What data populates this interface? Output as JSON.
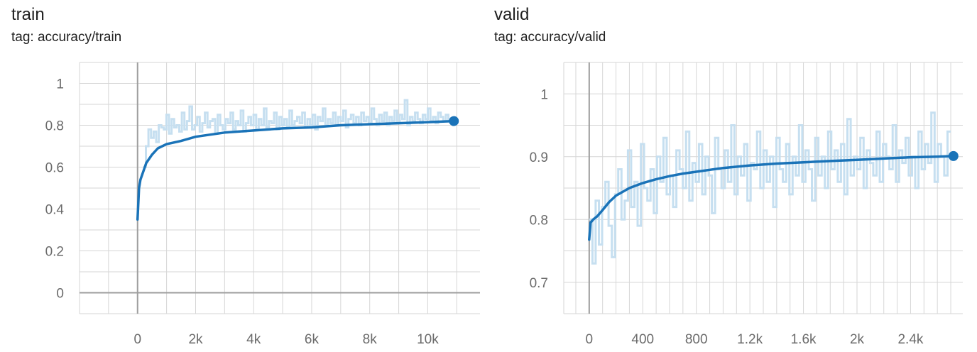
{
  "colors": {
    "raw_line": "#c6dff0",
    "smoothed_line": "#1a73b8",
    "grid": "#d6d6d6",
    "axis": "#9e9e9e",
    "tick_text": "#6b6b6b"
  },
  "charts": [
    {
      "title": "train",
      "tag": "tag: accuracy/train",
      "dot_icon": "end-point-dot"
    },
    {
      "title": "valid",
      "tag": "tag: accuracy/valid",
      "dot_icon": "end-point-dot"
    }
  ],
  "chart_data": [
    {
      "type": "line",
      "title": "train",
      "subtitle": "tag: accuracy/train",
      "xlim": [
        -2000,
        11800
      ],
      "ylim": [
        -0.1,
        1.1
      ],
      "grid": true,
      "x_ticks": [
        0,
        2000,
        4000,
        6000,
        8000,
        10000
      ],
      "x_tick_labels": [
        "0",
        "2k",
        "4k",
        "6k",
        "8k",
        "10k"
      ],
      "y_ticks": [
        0,
        0.2,
        0.4,
        0.6,
        0.8,
        1
      ],
      "y_tick_labels": [
        "0",
        "0.2",
        "0.4",
        "0.6",
        "0.8",
        "1"
      ],
      "series": [
        {
          "role": "smoothed",
          "x": [
            0,
            50,
            100,
            200,
            300,
            500,
            700,
            1000,
            1500,
            2000,
            3000,
            4000,
            5000,
            6000,
            7000,
            8000,
            9000,
            10000,
            10900
          ],
          "y": [
            0.35,
            0.5,
            0.54,
            0.58,
            0.62,
            0.66,
            0.69,
            0.71,
            0.725,
            0.745,
            0.765,
            0.775,
            0.785,
            0.79,
            0.8,
            0.805,
            0.81,
            0.815,
            0.82
          ]
        },
        {
          "role": "raw",
          "x_start": 200,
          "x_end": 10800,
          "y": [
            0.6,
            0.7,
            0.78,
            0.74,
            0.77,
            0.72,
            0.8,
            0.79,
            0.78,
            0.85,
            0.76,
            0.83,
            0.79,
            0.8,
            0.77,
            0.86,
            0.78,
            0.82,
            0.89,
            0.78,
            0.8,
            0.84,
            0.77,
            0.81,
            0.86,
            0.79,
            0.82,
            0.83,
            0.76,
            0.85,
            0.8,
            0.78,
            0.83,
            0.81,
            0.86,
            0.78,
            0.82,
            0.8,
            0.87,
            0.77,
            0.81,
            0.84,
            0.8,
            0.85,
            0.78,
            0.83,
            0.8,
            0.88,
            0.79,
            0.82,
            0.81,
            0.86,
            0.78,
            0.84,
            0.8,
            0.83,
            0.79,
            0.87,
            0.8,
            0.82,
            0.84,
            0.81,
            0.86,
            0.79,
            0.83,
            0.8,
            0.85,
            0.78,
            0.84,
            0.82,
            0.88,
            0.8,
            0.83,
            0.81,
            0.86,
            0.8,
            0.84,
            0.82,
            0.87,
            0.79,
            0.83,
            0.85,
            0.81,
            0.84,
            0.8,
            0.86,
            0.82,
            0.84,
            0.81,
            0.88,
            0.83,
            0.8,
            0.85,
            0.82,
            0.86,
            0.8,
            0.84,
            0.82,
            0.87,
            0.81,
            0.85,
            0.83,
            0.92,
            0.8,
            0.84,
            0.82,
            0.86,
            0.83,
            0.81,
            0.85,
            0.83,
            0.88,
            0.82,
            0.84,
            0.81,
            0.86,
            0.84,
            0.82,
            0.85,
            0.83
          ]
        }
      ],
      "endpoint": {
        "x": 10900,
        "y": 0.82
      }
    },
    {
      "type": "line",
      "title": "valid",
      "subtitle": "tag: accuracy/valid",
      "xlim": [
        -190,
        2790
      ],
      "ylim": [
        0.65,
        1.05
      ],
      "grid": true,
      "x_ticks": [
        0,
        400,
        800,
        1200,
        1600,
        2000,
        2400
      ],
      "x_tick_labels": [
        "0",
        "400",
        "800",
        "1.2k",
        "1.6k",
        "2k",
        "2.4k"
      ],
      "y_ticks": [
        0.7,
        0.8,
        0.9,
        1
      ],
      "y_tick_labels": [
        "0.7",
        "0.8",
        "0.9",
        "1"
      ],
      "series": [
        {
          "role": "smoothed",
          "x": [
            0,
            10,
            30,
            60,
            100,
            150,
            200,
            300,
            400,
            500,
            600,
            700,
            800,
            900,
            1000,
            1200,
            1400,
            1600,
            1800,
            2000,
            2200,
            2400,
            2600,
            2720
          ],
          "y": [
            0.768,
            0.795,
            0.8,
            0.805,
            0.815,
            0.828,
            0.838,
            0.85,
            0.858,
            0.864,
            0.869,
            0.873,
            0.876,
            0.879,
            0.882,
            0.886,
            0.889,
            0.891,
            0.893,
            0.895,
            0.897,
            0.899,
            0.9,
            0.901
          ]
        },
        {
          "role": "raw",
          "x_start": 0,
          "x_end": 2700,
          "y": [
            0.8,
            0.73,
            0.83,
            0.76,
            0.82,
            0.86,
            0.79,
            0.74,
            0.84,
            0.88,
            0.8,
            0.83,
            0.91,
            0.82,
            0.86,
            0.79,
            0.92,
            0.85,
            0.83,
            0.88,
            0.81,
            0.9,
            0.86,
            0.93,
            0.84,
            0.87,
            0.82,
            0.91,
            0.88,
            0.85,
            0.94,
            0.83,
            0.89,
            0.86,
            0.92,
            0.84,
            0.9,
            0.87,
            0.81,
            0.93,
            0.88,
            0.85,
            0.91,
            0.86,
            0.95,
            0.84,
            0.9,
            0.87,
            0.92,
            0.83,
            0.89,
            0.88,
            0.94,
            0.85,
            0.91,
            0.86,
            0.9,
            0.82,
            0.93,
            0.88,
            0.86,
            0.92,
            0.84,
            0.9,
            0.87,
            0.95,
            0.86,
            0.91,
            0.88,
            0.83,
            0.93,
            0.87,
            0.9,
            0.85,
            0.94,
            0.88,
            0.91,
            0.86,
            0.92,
            0.84,
            0.96,
            0.87,
            0.9,
            0.88,
            0.93,
            0.85,
            0.91,
            0.89,
            0.87,
            0.94,
            0.86,
            0.92,
            0.9,
            0.88,
            0.95,
            0.86,
            0.91,
            0.89,
            0.93,
            0.87,
            0.9,
            0.85,
            0.94,
            0.88,
            0.92,
            0.89,
            0.97,
            0.86,
            0.92,
            0.9,
            0.87,
            0.94
          ]
        }
      ],
      "endpoint": {
        "x": 2720,
        "y": 0.901
      }
    }
  ]
}
